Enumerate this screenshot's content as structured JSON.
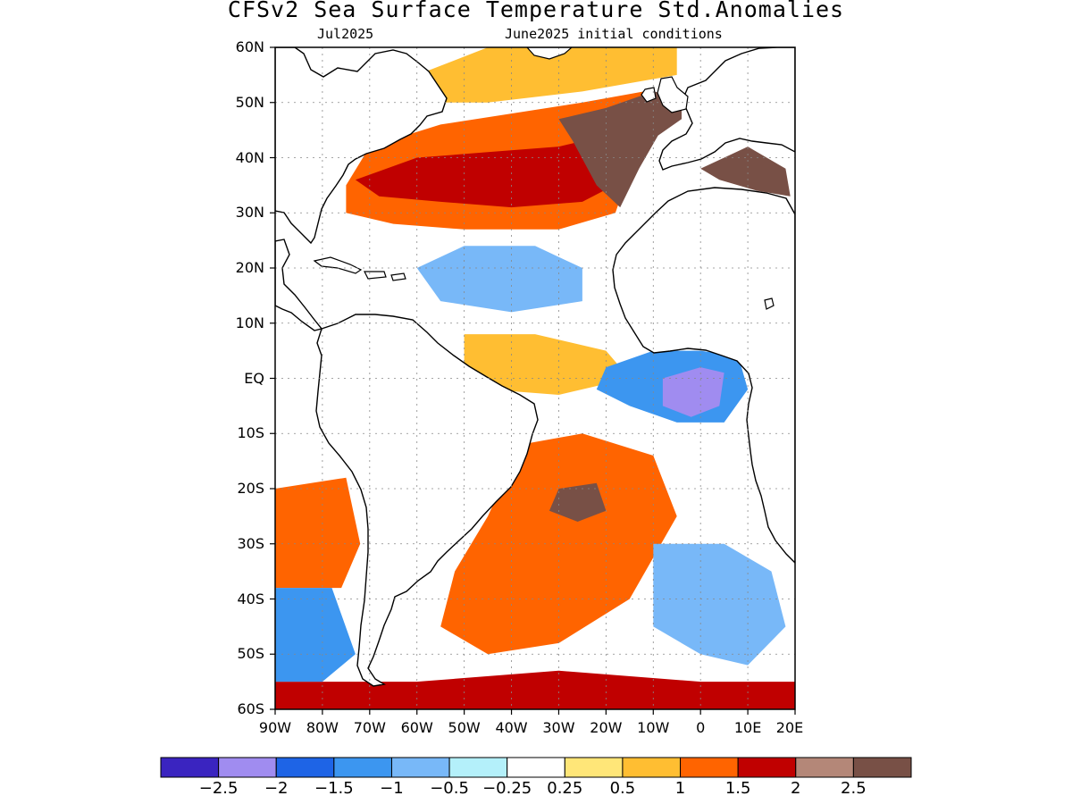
{
  "title": "CFSv2 Sea Surface Temperature Std.Anomalies",
  "valid_month": "Jul2025",
  "initial_conditions": "June2025 initial conditions",
  "lat_labels": [
    "60N",
    "50N",
    "40N",
    "30N",
    "20N",
    "10N",
    "EQ",
    "10S",
    "20S",
    "30S",
    "40S",
    "50S",
    "60S"
  ],
  "lon_labels": [
    "90W",
    "80W",
    "70W",
    "60W",
    "50W",
    "40W",
    "30W",
    "20W",
    "10W",
    "0",
    "10E",
    "20E"
  ],
  "colorbar": {
    "colors": [
      "#3a24c0",
      "#a08cf0",
      "#1e64e6",
      "#3c96f0",
      "#78b8f8",
      "#b4f0fa",
      "#ffffff",
      "#ffe678",
      "#ffbe32",
      "#ff6400",
      "#c00000",
      "#b48778",
      "#785046"
    ],
    "labels": [
      "−2.5",
      "−2",
      "−1.5",
      "−1",
      "−0.5",
      "−0.25",
      "0.25",
      "0.5",
      "1",
      "1.5",
      "2",
      "2.5"
    ]
  },
  "map": {
    "lon_range": [
      -90,
      20
    ],
    "lat_range": [
      -60,
      60
    ],
    "grid_lons": [
      -80,
      -70,
      -60,
      -50,
      -40,
      -30,
      -20,
      -10,
      0,
      10
    ],
    "grid_lats": [
      50,
      40,
      30,
      20,
      10,
      0,
      -10,
      -20,
      -30,
      -40,
      -50
    ],
    "anomaly_regions": [
      {
        "name": "north-atlantic-warm-band",
        "level": 1.25,
        "pts": [
          [
            -75,
            35
          ],
          [
            -70,
            42
          ],
          [
            -55,
            46
          ],
          [
            -40,
            48
          ],
          [
            -25,
            50
          ],
          [
            -12,
            52
          ],
          [
            -12,
            45
          ],
          [
            -18,
            30
          ],
          [
            -30,
            27
          ],
          [
            -50,
            27
          ],
          [
            -65,
            28
          ],
          [
            -75,
            30
          ]
        ]
      },
      {
        "name": "north-atlantic-strong-warm",
        "level": 1.75,
        "pts": [
          [
            -73,
            36
          ],
          [
            -60,
            40
          ],
          [
            -45,
            41
          ],
          [
            -30,
            42
          ],
          [
            -20,
            44
          ],
          [
            -14,
            46
          ],
          [
            -16,
            36
          ],
          [
            -25,
            32
          ],
          [
            -40,
            31
          ],
          [
            -55,
            32
          ],
          [
            -68,
            33
          ]
        ]
      },
      {
        "name": "northeast-atlantic-extreme-warm",
        "level": 2.75,
        "pts": [
          [
            -30,
            47
          ],
          [
            -20,
            49
          ],
          [
            -10,
            52
          ],
          [
            -4,
            51
          ],
          [
            -4,
            47
          ],
          [
            -9,
            44
          ],
          [
            -13,
            38
          ],
          [
            -17,
            31
          ],
          [
            -22,
            35
          ],
          [
            -27,
            43
          ]
        ]
      },
      {
        "name": "subpolar-mixed",
        "level": 0.75,
        "pts": [
          [
            -60,
            55
          ],
          [
            -45,
            60
          ],
          [
            -20,
            60
          ],
          [
            -5,
            60
          ],
          [
            -5,
            55
          ],
          [
            -25,
            52
          ],
          [
            -45,
            50
          ],
          [
            -57,
            50
          ]
        ]
      },
      {
        "name": "mediterranean-extreme-warm",
        "level": 2.75,
        "pts": [
          [
            0,
            38
          ],
          [
            5,
            40
          ],
          [
            10,
            42
          ],
          [
            14,
            40
          ],
          [
            18,
            38
          ],
          [
            19,
            33
          ],
          [
            12,
            34
          ],
          [
            4,
            36
          ]
        ]
      },
      {
        "name": "tropical-north-atlantic-cool",
        "level": -0.75,
        "pts": [
          [
            -60,
            20
          ],
          [
            -50,
            24
          ],
          [
            -35,
            24
          ],
          [
            -25,
            20
          ],
          [
            -25,
            14
          ],
          [
            -40,
            12
          ],
          [
            -55,
            14
          ]
        ]
      },
      {
        "name": "equatorial-warm",
        "level": 0.75,
        "pts": [
          [
            -50,
            8
          ],
          [
            -35,
            8
          ],
          [
            -20,
            5
          ],
          [
            -15,
            0
          ],
          [
            -30,
            -3
          ],
          [
            -45,
            -2
          ],
          [
            -50,
            2
          ]
        ]
      },
      {
        "name": "gulf-of-guinea-cool",
        "level": -1.25,
        "pts": [
          [
            -20,
            2
          ],
          [
            -10,
            5
          ],
          [
            0,
            5
          ],
          [
            8,
            4
          ],
          [
            10,
            -2
          ],
          [
            5,
            -8
          ],
          [
            -5,
            -8
          ],
          [
            -15,
            -5
          ],
          [
            -22,
            -2
          ]
        ]
      },
      {
        "name": "gulf-of-guinea-strong-cool",
        "level": -2.25,
        "pts": [
          [
            -8,
            0
          ],
          [
            0,
            2
          ],
          [
            5,
            1
          ],
          [
            4,
            -5
          ],
          [
            -2,
            -7
          ],
          [
            -8,
            -5
          ]
        ]
      },
      {
        "name": "south-atlantic-warm",
        "level": 1.25,
        "pts": [
          [
            -38,
            -12
          ],
          [
            -25,
            -10
          ],
          [
            -10,
            -14
          ],
          [
            -5,
            -25
          ],
          [
            -15,
            -40
          ],
          [
            -30,
            -48
          ],
          [
            -45,
            -50
          ],
          [
            -55,
            -45
          ],
          [
            -52,
            -35
          ],
          [
            -45,
            -25
          ]
        ]
      },
      {
        "name": "south-atlantic-extreme-warm",
        "level": 2.75,
        "pts": [
          [
            -30,
            -20
          ],
          [
            -22,
            -19
          ],
          [
            -20,
            -24
          ],
          [
            -26,
            -26
          ],
          [
            -32,
            -24
          ]
        ]
      },
      {
        "name": "southeast-atlantic-cool",
        "level": -0.75,
        "pts": [
          [
            -10,
            -30
          ],
          [
            5,
            -30
          ],
          [
            15,
            -35
          ],
          [
            18,
            -45
          ],
          [
            10,
            -52
          ],
          [
            0,
            -50
          ],
          [
            -10,
            -45
          ]
        ]
      },
      {
        "name": "southern-ocean-warm",
        "level": 1.75,
        "pts": [
          [
            -90,
            -55
          ],
          [
            -60,
            -55
          ],
          [
            -30,
            -53
          ],
          [
            0,
            -55
          ],
          [
            20,
            -55
          ],
          [
            20,
            -60
          ],
          [
            -90,
            -60
          ]
        ]
      },
      {
        "name": "southeast-pacific-warm",
        "level": 1.25,
        "pts": [
          [
            -90,
            -20
          ],
          [
            -75,
            -18
          ],
          [
            -72,
            -30
          ],
          [
            -76,
            -38
          ],
          [
            -90,
            -38
          ]
        ]
      },
      {
        "name": "southeast-pacific-cool",
        "level": -1.25,
        "pts": [
          [
            -90,
            -38
          ],
          [
            -78,
            -38
          ],
          [
            -73,
            -50
          ],
          [
            -80,
            -55
          ],
          [
            -90,
            -55
          ]
        ]
      }
    ]
  }
}
